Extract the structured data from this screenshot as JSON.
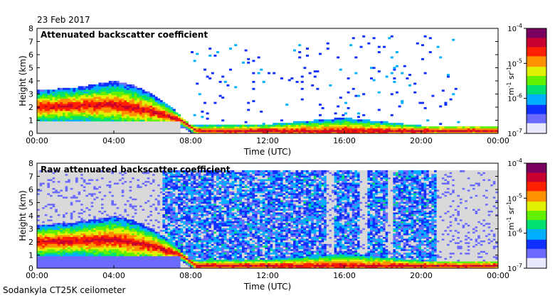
{
  "date": "23 Feb 2017",
  "footer": "Sodankyla CT25K ceilometer",
  "colors": {
    "no_data": "#d9d9d9",
    "colormap": [
      "#e8e8ff",
      "#6a6aff",
      "#1030ff",
      "#00b0ff",
      "#00e070",
      "#60f000",
      "#e0f000",
      "#ff9000",
      "#ff2000",
      "#c80030",
      "#7a0060"
    ]
  },
  "chart_data": [
    {
      "type": "heatmap",
      "title": "Attenuated backscatter coefficient",
      "xlabel": "Time (UTC)",
      "ylabel": "Height (km)",
      "xticks": [
        "00:00",
        "04:00",
        "08:00",
        "12:00",
        "16:00",
        "20:00",
        "00:00"
      ],
      "xlim": [
        0,
        24
      ],
      "yticks": [
        "0",
        "1",
        "2",
        "3",
        "4",
        "5",
        "6",
        "7",
        "8"
      ],
      "ylim": [
        0,
        8
      ],
      "background": "no-data only below ~1 km before 08:00",
      "colorbar": {
        "ticks": [
          "10^-7",
          "10^-6",
          "10^-5",
          "10^-4"
        ],
        "label": "m^-1 sr^-1",
        "scale": "log",
        "range": [
          1e-07,
          0.0001
        ]
      },
      "features": {
        "aerosol_layer_top_km": [
          [
            0,
            3.3
          ],
          [
            2,
            3.5
          ],
          [
            4,
            4.0
          ],
          [
            5,
            3.7
          ],
          [
            6,
            3.0
          ],
          [
            7,
            2.0
          ],
          [
            8,
            0.6
          ],
          [
            12,
            0.7
          ],
          [
            16,
            1.2
          ],
          [
            20,
            0.6
          ],
          [
            24,
            0.6
          ]
        ],
        "peak_layer_km": [
          [
            0,
            2.0
          ],
          [
            4,
            2.2
          ],
          [
            6,
            1.7
          ],
          [
            7.5,
            1.0
          ],
          [
            8.3,
            0.2
          ],
          [
            24,
            0.2
          ]
        ]
      }
    },
    {
      "type": "heatmap",
      "title": "Raw attenuated backscatter coefficient",
      "xlabel": "Time (UTC)",
      "ylabel": "Height (km)",
      "xticks": [
        "00:00",
        "04:00",
        "08:00",
        "12:00",
        "16:00",
        "20:00",
        "00:00"
      ],
      "xlim": [
        0,
        24
      ],
      "yticks": [
        "0",
        "1",
        "2",
        "3",
        "4",
        "5",
        "6",
        "7",
        "8"
      ],
      "ylim": [
        0,
        8
      ],
      "background": "noise above aerosol layer; dense blue noise 07:00–20:00",
      "colorbar": {
        "ticks": [
          "10^-7",
          "10^-6",
          "10^-5",
          "10^-4"
        ],
        "label": "m^-1 sr^-1",
        "scale": "log",
        "range": [
          1e-07,
          0.0001
        ]
      }
    }
  ]
}
